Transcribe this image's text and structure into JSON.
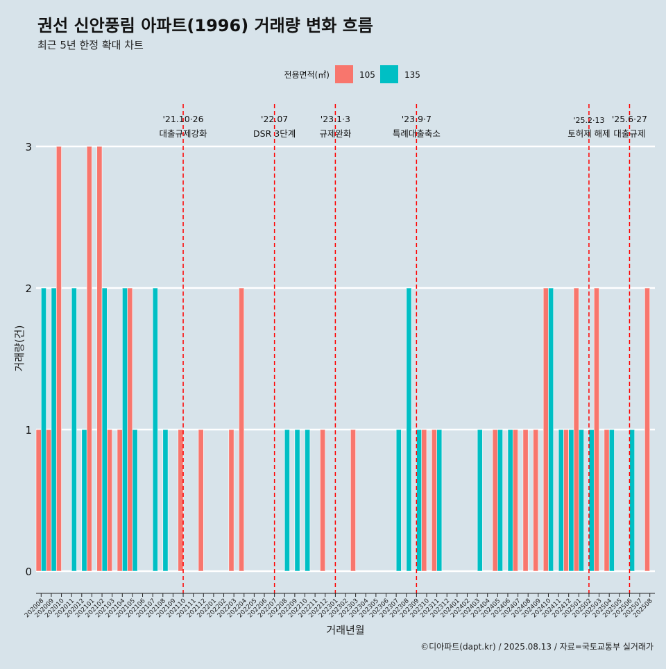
{
  "chart_data": {
    "type": "bar",
    "title": "권선 신안풍림 아파트(1996) 거래량 변화 흐름",
    "subtitle": "최근 5년 한정 확대 차트",
    "xlabel": "거래년월",
    "ylabel": "거래량(건)",
    "ylim": [
      0,
      3
    ],
    "yticks": [
      0,
      1,
      2,
      3
    ],
    "grid": "horizontal",
    "legend": {
      "title": "전용면적(㎡)",
      "placement": "top",
      "items": [
        {
          "label": "105",
          "color": "#F8766D"
        },
        {
          "label": "135",
          "color": "#00BFC4"
        }
      ]
    },
    "categories": [
      "202008",
      "202009",
      "202010",
      "202011",
      "202012",
      "202101",
      "202102",
      "202103",
      "202104",
      "202105",
      "202106",
      "202107",
      "202108",
      "202109",
      "202110",
      "202111",
      "202112",
      "202201",
      "202202",
      "202203",
      "202204",
      "202205",
      "202206",
      "202207",
      "202208",
      "202209",
      "202210",
      "202211",
      "202212",
      "202301",
      "202302",
      "202303",
      "202304",
      "202305",
      "202306",
      "202307",
      "202308",
      "202309",
      "202310",
      "202311",
      "202312",
      "202401",
      "202402",
      "202403",
      "202404",
      "202405",
      "202406",
      "202407",
      "202408",
      "202409",
      "202410",
      "202411",
      "202412",
      "202501",
      "202502",
      "202503",
      "202504",
      "202505",
      "202506",
      "202507",
      "202508"
    ],
    "series": [
      {
        "name": "105",
        "color": "#F8766D",
        "values": [
          1,
          1,
          3,
          0,
          0,
          3,
          3,
          1,
          1,
          2,
          0,
          0,
          0,
          0,
          1,
          0,
          1,
          0,
          0,
          1,
          2,
          0,
          0,
          0,
          0,
          0,
          0,
          0,
          1,
          0,
          0,
          1,
          0,
          0,
          0,
          0,
          0,
          0,
          1,
          1,
          0,
          0,
          0,
          0,
          0,
          1,
          0,
          1,
          1,
          1,
          2,
          0,
          1,
          2,
          0,
          2,
          1,
          0,
          0,
          0,
          2
        ]
      },
      {
        "name": "135",
        "color": "#00BFC4",
        "values": [
          2,
          2,
          0,
          2,
          1,
          0,
          2,
          0,
          2,
          1,
          0,
          2,
          1,
          0,
          0,
          0,
          0,
          0,
          0,
          0,
          0,
          0,
          0,
          0,
          1,
          1,
          1,
          0,
          0,
          0,
          0,
          0,
          0,
          0,
          0,
          1,
          2,
          1,
          0,
          1,
          0,
          0,
          0,
          1,
          0,
          1,
          1,
          0,
          0,
          0,
          2,
          1,
          1,
          1,
          1,
          0,
          1,
          0,
          1,
          0,
          0
        ]
      }
    ],
    "events": [
      {
        "date": "202110",
        "line1": "'21.10·26",
        "line2": "대출규제강화"
      },
      {
        "date": "202207",
        "line1": "'22.07",
        "line2": "DSR 3단계"
      },
      {
        "date": "202301",
        "line1": "'23.1·3",
        "line2": "규제완화"
      },
      {
        "date": "202309",
        "line1": "'23.9·7",
        "line2": "특례대출축소"
      },
      {
        "date": "202502",
        "line1": "'25.2·13",
        "line2": "토허제 해제"
      },
      {
        "date": "202506",
        "line1": "'25.6·27",
        "line2": "대출규제"
      }
    ],
    "event_line_color": "#FF0000",
    "caption": "©디아파트(dapt.kr) / 2025.08.13 / 자료=국토교통부 실거래가"
  }
}
